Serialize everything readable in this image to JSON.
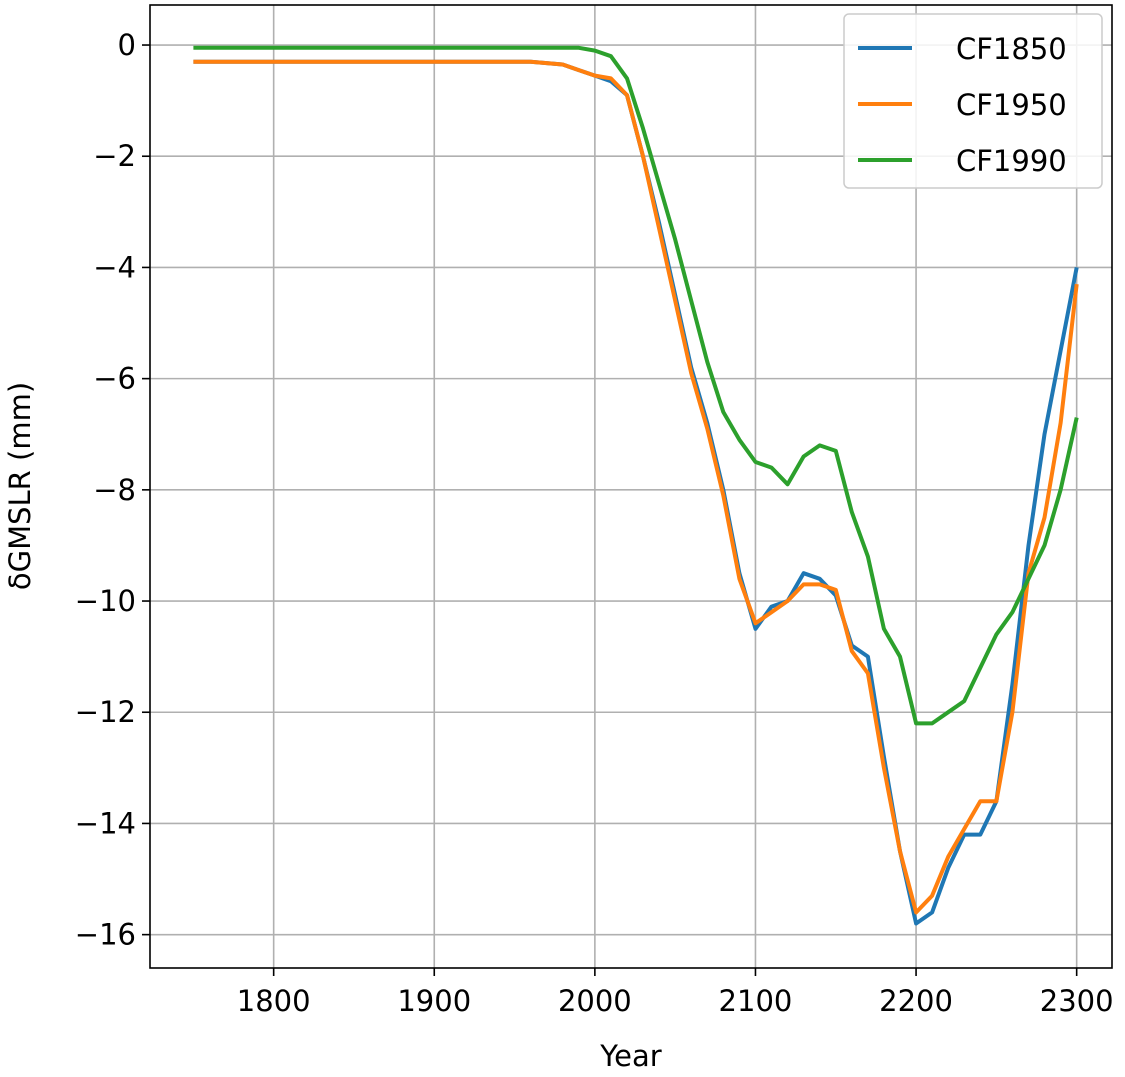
{
  "chart_data": {
    "type": "line",
    "title": "",
    "xlabel": "Year",
    "ylabel": "δGMSLR (mm)",
    "xlim": [
      1723,
      2322
    ],
    "ylim": [
      -16.6,
      0.72
    ],
    "xticks": [
      1800,
      1900,
      2000,
      2100,
      2200,
      2300
    ],
    "yticks": [
      0,
      -2,
      -4,
      -6,
      -8,
      -10,
      -12,
      -14,
      -16
    ],
    "ytick_labels": [
      "0",
      "−2",
      "−4",
      "−6",
      "−8",
      "−10",
      "−12",
      "−14",
      "−16"
    ],
    "grid": true,
    "legend_position": "top-right",
    "x": [
      1750,
      1800,
      1850,
      1900,
      1950,
      1960,
      1980,
      1990,
      2000,
      2010,
      2020,
      2030,
      2040,
      2050,
      2060,
      2070,
      2080,
      2090,
      2100,
      2110,
      2120,
      2130,
      2140,
      2150,
      2160,
      2170,
      2180,
      2190,
      2200,
      2210,
      2220,
      2230,
      2240,
      2250,
      2260,
      2270,
      2280,
      2290,
      2300
    ],
    "series": [
      {
        "name": "CF1850",
        "color": "#1f77b4",
        "values": [
          -0.3,
          -0.3,
          -0.3,
          -0.3,
          -0.3,
          -0.3,
          -0.35,
          -0.45,
          -0.55,
          -0.65,
          -0.9,
          -2.0,
          -3.2,
          -4.5,
          -5.8,
          -6.8,
          -8.0,
          -9.5,
          -10.5,
          -10.1,
          -10.0,
          -9.5,
          -9.6,
          -9.9,
          -10.8,
          -11.0,
          -12.8,
          -14.5,
          -15.8,
          -15.6,
          -14.8,
          -14.2,
          -14.2,
          -13.6,
          -11.5,
          -9.0,
          -7.0,
          -5.5,
          -4.0
        ]
      },
      {
        "name": "CF1950",
        "color": "#ff7f0e",
        "values": [
          -0.3,
          -0.3,
          -0.3,
          -0.3,
          -0.3,
          -0.3,
          -0.35,
          -0.45,
          -0.55,
          -0.6,
          -0.9,
          -2.0,
          -3.3,
          -4.6,
          -5.9,
          -6.9,
          -8.1,
          -9.6,
          -10.4,
          -10.2,
          -10.0,
          -9.7,
          -9.7,
          -9.8,
          -10.9,
          -11.3,
          -13.0,
          -14.5,
          -15.6,
          -15.3,
          -14.6,
          -14.1,
          -13.6,
          -13.6,
          -12.0,
          -9.5,
          -8.5,
          -6.8,
          -4.3
        ]
      },
      {
        "name": "CF1990",
        "color": "#2ca02c",
        "values": [
          -0.05,
          -0.05,
          -0.05,
          -0.05,
          -0.05,
          -0.05,
          -0.05,
          -0.05,
          -0.1,
          -0.2,
          -0.6,
          -1.5,
          -2.5,
          -3.5,
          -4.6,
          -5.7,
          -6.6,
          -7.1,
          -7.5,
          -7.6,
          -7.9,
          -7.4,
          -7.2,
          -7.3,
          -8.4,
          -9.2,
          -10.5,
          -11.0,
          -12.2,
          -12.2,
          -12.0,
          -11.8,
          -11.2,
          -10.6,
          -10.2,
          -9.6,
          -9.0,
          -8.0,
          -6.7
        ]
      }
    ]
  }
}
